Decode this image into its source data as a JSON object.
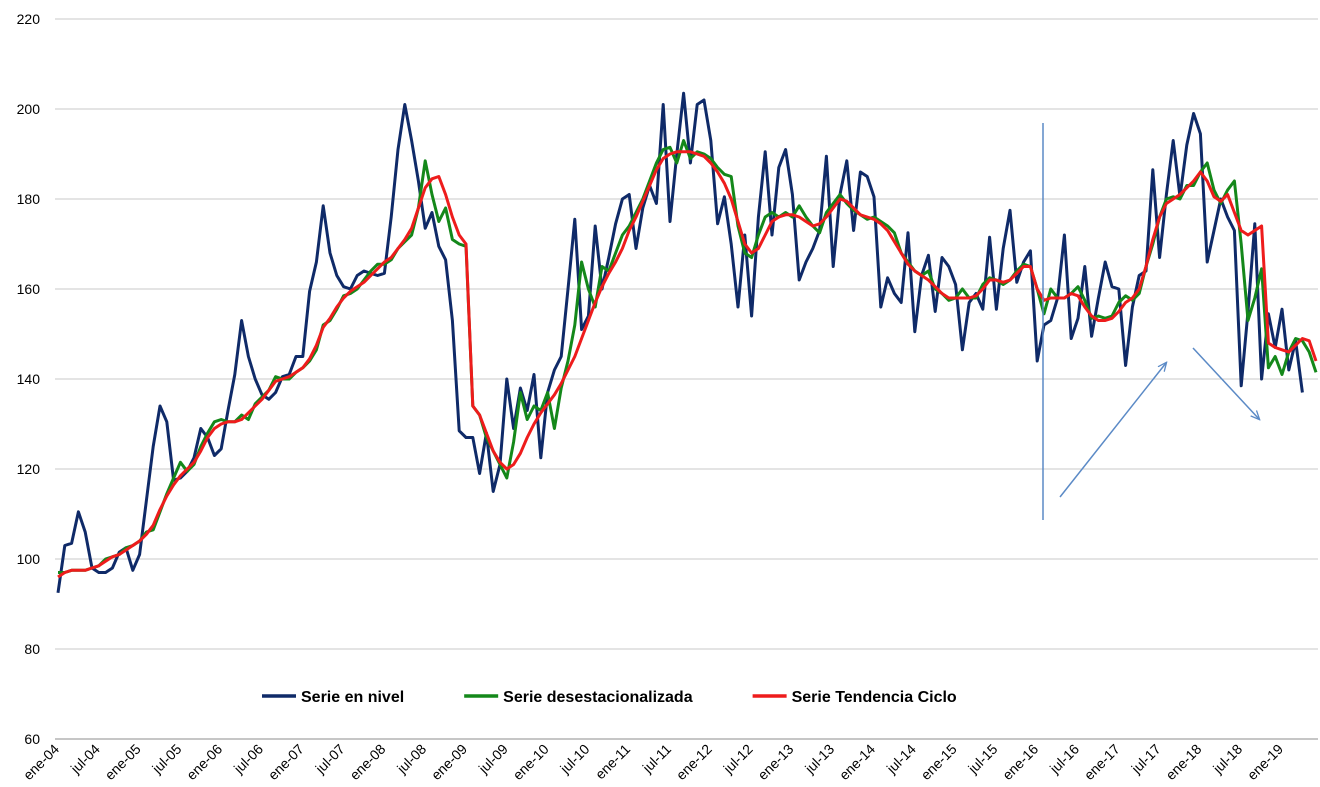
{
  "chart_data": {
    "type": "line",
    "categories": [
      "ene-04",
      null,
      null,
      null,
      null,
      null,
      "jul-04",
      null,
      null,
      null,
      null,
      null,
      "ene-05",
      null,
      null,
      null,
      null,
      null,
      "jul-05",
      null,
      null,
      null,
      null,
      null,
      "ene-06",
      null,
      null,
      null,
      null,
      null,
      "jul-06",
      null,
      null,
      null,
      null,
      null,
      "ene-07",
      null,
      null,
      null,
      null,
      null,
      "jul-07",
      null,
      null,
      null,
      null,
      null,
      "ene-08",
      null,
      null,
      null,
      null,
      null,
      "jul-08",
      null,
      null,
      null,
      null,
      null,
      "ene-09",
      null,
      null,
      null,
      null,
      null,
      "jul-09",
      null,
      null,
      null,
      null,
      null,
      "ene-10",
      null,
      null,
      null,
      null,
      null,
      "jul-10",
      null,
      null,
      null,
      null,
      null,
      "ene-11",
      null,
      null,
      null,
      null,
      null,
      "jul-11",
      null,
      null,
      null,
      null,
      null,
      "ene-12",
      null,
      null,
      null,
      null,
      null,
      "jul-12",
      null,
      null,
      null,
      null,
      null,
      "ene-13",
      null,
      null,
      null,
      null,
      null,
      "jul-13",
      null,
      null,
      null,
      null,
      null,
      "ene-14",
      null,
      null,
      null,
      null,
      null,
      "jul-14",
      null,
      null,
      null,
      null,
      null,
      "ene-15",
      null,
      null,
      null,
      null,
      null,
      "jul-15",
      null,
      null,
      null,
      null,
      null,
      "ene-16",
      null,
      null,
      null,
      null,
      null,
      "jul-16",
      null,
      null,
      null,
      null,
      null,
      "ene-17",
      null,
      null,
      null,
      null,
      null,
      "jul-17",
      null,
      null,
      null,
      null,
      null,
      "ene-18",
      null,
      null,
      null,
      null,
      null,
      "jul-18",
      null,
      null,
      null,
      null,
      null,
      "ene-19",
      null,
      null,
      null,
      null,
      null
    ],
    "series": [
      {
        "name": "Serie en nivel",
        "color": "#0f2a68",
        "values": [
          92.5,
          103,
          103.5,
          110.5,
          106,
          98,
          97,
          97,
          98,
          101.5,
          102.5,
          97.5,
          101,
          113,
          125,
          134,
          130.5,
          117.5,
          118,
          119.5,
          122.5,
          129,
          127,
          123,
          124.5,
          133,
          141,
          153,
          145,
          140,
          136.5,
          135.5,
          137,
          140.5,
          141,
          145,
          145,
          159.5,
          166,
          178.5,
          168,
          163,
          160.5,
          160,
          163,
          164,
          163.5,
          163,
          163.5,
          176,
          191,
          201,
          193,
          184,
          173.5,
          177,
          169.5,
          166.5,
          153,
          128.5,
          127,
          127,
          119,
          128,
          115,
          121,
          140,
          129,
          138,
          133,
          141,
          122.5,
          137,
          142,
          145,
          160,
          175.5,
          151,
          154,
          174,
          160,
          167,
          174.5,
          180,
          181,
          169,
          178,
          183,
          179,
          201,
          175,
          190,
          203.5,
          188,
          201,
          202,
          193,
          174.5,
          180.5,
          170,
          156,
          172,
          154,
          176,
          190.5,
          172,
          187,
          191,
          181,
          162,
          166,
          169,
          173,
          189.5,
          165,
          181,
          188.5,
          173,
          186,
          185,
          180.5,
          156,
          162.5,
          159,
          157,
          172.5,
          150.5,
          163,
          167.5,
          155,
          167,
          165,
          161,
          146.5,
          157,
          159,
          155.5,
          171.5,
          155.5,
          169,
          177.5,
          161.5,
          166,
          168.5,
          144,
          152,
          153,
          158,
          172,
          149,
          153.5,
          165,
          149.5,
          158,
          166,
          160.5,
          160,
          143,
          156,
          163,
          164,
          186.5,
          167,
          181,
          193,
          180.5,
          192,
          199,
          194.5,
          166,
          173,
          180,
          176,
          173,
          138.5,
          155,
          174.5,
          140,
          154.5,
          147,
          155.5,
          142,
          148.5,
          137,
          null,
          null
        ]
      },
      {
        "name": "Serie desestacionalizada",
        "color": "#14881a",
        "values": [
          97,
          97,
          97.5,
          97.5,
          97.5,
          98,
          98.5,
          100,
          100.5,
          101,
          102.5,
          103,
          104,
          106,
          106.5,
          110.5,
          114.5,
          118,
          121.5,
          119.5,
          121,
          125,
          128,
          130.5,
          131,
          130.5,
          130.5,
          132,
          131,
          134.5,
          136,
          137.5,
          140.5,
          140,
          140,
          141.5,
          142.5,
          144,
          146.5,
          152,
          153,
          155.5,
          158.5,
          159,
          160,
          162,
          164,
          165.5,
          165.5,
          166.5,
          169,
          170.5,
          172,
          178,
          188.5,
          181,
          175,
          178,
          171,
          170,
          169.5,
          134,
          132,
          127,
          124,
          121,
          118,
          126,
          137,
          131,
          134,
          133,
          137,
          129,
          138,
          144,
          152,
          166,
          160,
          156,
          165,
          164,
          168,
          172,
          174,
          177,
          180,
          184,
          188,
          191,
          191.5,
          188,
          193,
          189,
          190.5,
          190,
          189,
          187,
          185.5,
          185,
          174,
          168,
          167,
          172,
          176,
          177,
          176,
          177,
          176,
          178.5,
          176,
          174,
          172.5,
          177,
          179,
          181,
          179,
          177.5,
          176.5,
          175.5,
          176,
          175,
          174,
          172.5,
          168,
          166,
          164,
          163,
          164,
          160,
          159,
          157.5,
          158,
          160,
          158,
          158,
          161,
          162.5,
          162,
          161,
          162,
          164,
          165.5,
          165,
          160,
          154.5,
          160,
          158,
          158,
          159,
          160.5,
          157.5,
          153.5,
          154,
          153.5,
          154,
          157,
          158.5,
          157.5,
          159,
          165,
          170,
          176,
          180,
          180.5,
          180,
          183,
          183,
          186,
          188,
          182,
          179,
          182,
          184,
          170,
          153,
          158,
          164.5,
          142.5,
          145,
          141,
          146,
          149,
          148.5,
          146,
          141.5
        ]
      },
      {
        "name": "Serie Tendencia Ciclo",
        "color": "#ee1c1c",
        "values": [
          96,
          97,
          97.5,
          97.5,
          97.5,
          98,
          98.5,
          99.5,
          100.5,
          101,
          102,
          103,
          104,
          105.5,
          107.5,
          111,
          114,
          116.5,
          118.5,
          120,
          121.5,
          124,
          127,
          129,
          130,
          130.5,
          130.5,
          131,
          132.5,
          134,
          135.5,
          137.5,
          139.5,
          140,
          140.5,
          141.5,
          142.5,
          144.5,
          147.5,
          151.5,
          153.5,
          156,
          158,
          159.5,
          160.5,
          161.5,
          163,
          164.5,
          166,
          167,
          169,
          171,
          173.5,
          178,
          182.5,
          184.5,
          185,
          181,
          176,
          172,
          170,
          134,
          132,
          128,
          124,
          121.5,
          120,
          121,
          123.5,
          127,
          130,
          132.5,
          134.5,
          136.5,
          139,
          142,
          145,
          149,
          153,
          157,
          160.5,
          163.5,
          166,
          169,
          173,
          176,
          179.5,
          183,
          186.5,
          189,
          190,
          190.5,
          190.5,
          190.5,
          190,
          189.5,
          188,
          186,
          183.5,
          180,
          175,
          170,
          168,
          169,
          172,
          175,
          176,
          176.5,
          176.5,
          176,
          175,
          174,
          174.5,
          176,
          178,
          180,
          179.5,
          178,
          176.5,
          176,
          175.5,
          174.5,
          173,
          170.5,
          168,
          165.5,
          164,
          163,
          162,
          160.5,
          159,
          158,
          158,
          158,
          158,
          158.5,
          160,
          162,
          162,
          161.5,
          162,
          163.5,
          165,
          165,
          160,
          157.5,
          158,
          158,
          158,
          159,
          158.5,
          156,
          154,
          153,
          153,
          153.5,
          155,
          157,
          158,
          160,
          165,
          171,
          176,
          179,
          180,
          181,
          182.5,
          184,
          186,
          184,
          180.5,
          179.5,
          181,
          177,
          173,
          172,
          173,
          174,
          148,
          147,
          146.5,
          146,
          147.5,
          149,
          148.5,
          144
        ]
      }
    ],
    "ylim": [
      60,
      220
    ],
    "yticks": [
      60,
      80,
      100,
      120,
      140,
      160,
      180,
      200,
      220
    ],
    "grid": true,
    "legend": "bottom"
  }
}
